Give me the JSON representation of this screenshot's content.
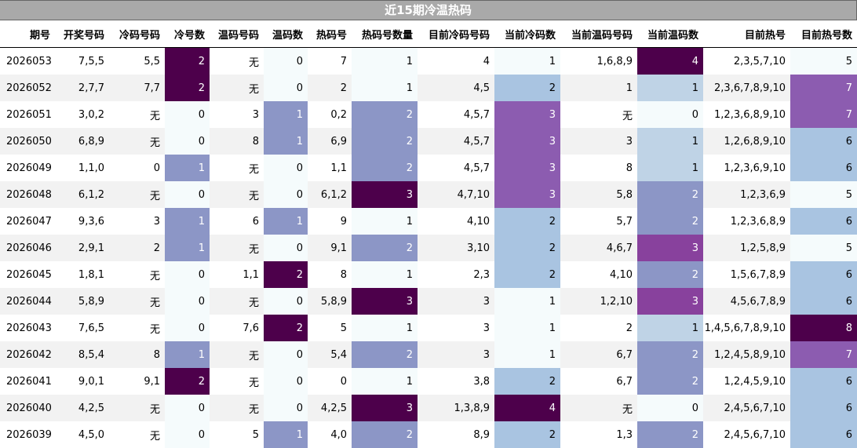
{
  "chart_data": {
    "type": "table",
    "title": "近15期冷温热码",
    "columns": [
      "期号",
      "开奖号码",
      "冷码号码",
      "冷号数",
      "温码号码",
      "温码数",
      "热码号",
      "热码号数量",
      "目前冷码号码",
      "当前冷码数",
      "当前温码号码",
      "当前温码数",
      "目前热号",
      "目前热号数"
    ],
    "rows": [
      [
        "2026053",
        "7,5,5",
        "5,5",
        "2",
        "无",
        "0",
        "7",
        "1",
        "4",
        "1",
        "1,6,8,9",
        "4",
        "2,3,5,7,10",
        "5"
      ],
      [
        "2026052",
        "2,7,7",
        "7,7",
        "2",
        "无",
        "0",
        "2",
        "1",
        "4,5",
        "2",
        "1",
        "1",
        "2,3,6,7,8,9,10",
        "7"
      ],
      [
        "2026051",
        "3,0,2",
        "无",
        "0",
        "3",
        "1",
        "0,2",
        "2",
        "4,5,7",
        "3",
        "无",
        "0",
        "1,2,3,6,8,9,10",
        "7"
      ],
      [
        "2026050",
        "6,8,9",
        "无",
        "0",
        "8",
        "1",
        "6,9",
        "2",
        "4,5,7",
        "3",
        "3",
        "1",
        "1,2,6,8,9,10",
        "6"
      ],
      [
        "2026049",
        "1,1,0",
        "0",
        "1",
        "无",
        "0",
        "1,1",
        "2",
        "4,5,7",
        "3",
        "8",
        "1",
        "1,2,3,6,9,10",
        "6"
      ],
      [
        "2026048",
        "6,1,2",
        "无",
        "0",
        "无",
        "0",
        "6,1,2",
        "3",
        "4,7,10",
        "3",
        "5,8",
        "2",
        "1,2,3,6,9",
        "5"
      ],
      [
        "2026047",
        "9,3,6",
        "3",
        "1",
        "6",
        "1",
        "9",
        "1",
        "4,10",
        "2",
        "5,7",
        "2",
        "1,2,3,6,8,9",
        "6"
      ],
      [
        "2026046",
        "2,9,1",
        "2",
        "1",
        "无",
        "0",
        "9,1",
        "2",
        "3,10",
        "2",
        "4,6,7",
        "3",
        "1,2,5,8,9",
        "5"
      ],
      [
        "2026045",
        "1,8,1",
        "无",
        "0",
        "1,1",
        "2",
        "8",
        "1",
        "2,3",
        "2",
        "4,10",
        "2",
        "1,5,6,7,8,9",
        "6"
      ],
      [
        "2026044",
        "5,8,9",
        "无",
        "0",
        "无",
        "0",
        "5,8,9",
        "3",
        "3",
        "1",
        "1,2,10",
        "3",
        "4,5,6,7,8,9",
        "6"
      ],
      [
        "2026043",
        "7,6,5",
        "无",
        "0",
        "7,6",
        "2",
        "5",
        "1",
        "3",
        "1",
        "2",
        "1",
        "1,4,5,6,7,8,9,10",
        "8"
      ],
      [
        "2026042",
        "8,5,4",
        "8",
        "1",
        "无",
        "0",
        "5,4",
        "2",
        "3",
        "1",
        "6,7",
        "2",
        "1,2,4,5,8,9,10",
        "7"
      ],
      [
        "2026041",
        "9,0,1",
        "9,1",
        "2",
        "无",
        "0",
        "0",
        "1",
        "3,8",
        "2",
        "6,7",
        "2",
        "1,2,4,5,9,10",
        "6"
      ],
      [
        "2026040",
        "4,2,5",
        "无",
        "0",
        "无",
        "0",
        "4,2,5",
        "3",
        "1,3,8,9",
        "4",
        "无",
        "0",
        "2,4,5,6,7,10",
        "6"
      ],
      [
        "2026039",
        "4,5,0",
        "无",
        "0",
        "5",
        "1",
        "4,0",
        "2",
        "8,9",
        "2",
        "1,3",
        "2",
        "2,4,5,6,7,10",
        "6"
      ]
    ],
    "colored_columns": [
      3,
      5,
      7,
      9,
      11,
      13
    ],
    "colors": {
      "title_bg": "#a9a9a9",
      "c3": {
        "0": "#f5fbfc",
        "1": "#8c96c6",
        "2": "#4d004b"
      },
      "c5": {
        "0": "#f5fbfc",
        "1": "#8c96c6",
        "2": "#4d004b"
      },
      "c7": {
        "1": "#f5fbfc",
        "2": "#8c96c6",
        "3": "#4d004b"
      },
      "c9": {
        "1": "#f5fbfc",
        "2": "#a9c4e1",
        "3": "#8c5cb0",
        "4": "#4d004b"
      },
      "c11": {
        "0": "#f5fbfc",
        "1": "#bfd3e6",
        "2": "#8c96c6",
        "3": "#88419d",
        "4": "#4d004b"
      },
      "c13": {
        "5": "#f5fbfc",
        "6": "#a9c4e1",
        "7": "#8c5cb0",
        "8": "#4d004b"
      }
    }
  }
}
